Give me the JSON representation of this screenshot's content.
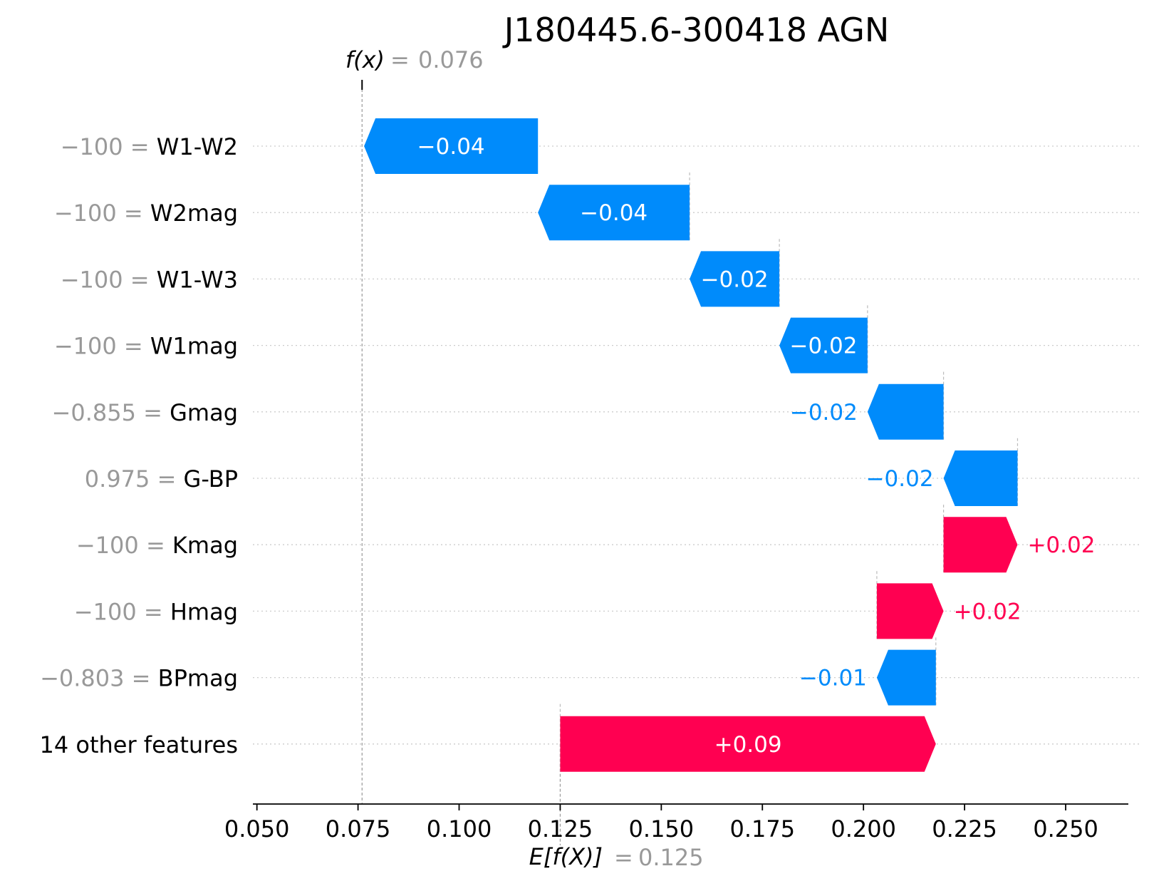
{
  "chart_data": {
    "type": "waterfall",
    "title": "J180445.6-300418 AGN",
    "fx": {
      "label": "f(x)",
      "value": 0.076,
      "value_text": "0.076"
    },
    "base": {
      "label": "E[f(X)]",
      "value": 0.125,
      "value_text": "0.125"
    },
    "x_ticks": [
      "0.050",
      "0.075",
      "0.100",
      "0.125",
      "0.150",
      "0.175",
      "0.200",
      "0.225",
      "0.250"
    ],
    "xlim": [
      0.049,
      0.2655
    ],
    "colors": {
      "positive": "#ff0051",
      "negative": "#008bfb"
    },
    "features": [
      {
        "value": "−100",
        "name": "W1-W2",
        "start": 0.1195,
        "end": 0.0765,
        "label": "−0.04"
      },
      {
        "value": "−100",
        "name": "W2mag",
        "start": 0.157,
        "end": 0.1195,
        "label": "−0.04"
      },
      {
        "value": "−100",
        "name": "W1-W3",
        "start": 0.1792,
        "end": 0.157,
        "label": "−0.02"
      },
      {
        "value": "−100",
        "name": "W1mag",
        "start": 0.201,
        "end": 0.1792,
        "label": "−0.02"
      },
      {
        "value": "−0.855",
        "name": "Gmag",
        "start": 0.2198,
        "end": 0.201,
        "label": "−0.02"
      },
      {
        "value": "0.975",
        "name": "G-BP",
        "start": 0.2381,
        "end": 0.2198,
        "label": "−0.02"
      },
      {
        "value": "−100",
        "name": "Kmag",
        "start": 0.2198,
        "end": 0.2381,
        "label": "+0.02"
      },
      {
        "value": "−100",
        "name": "Hmag",
        "start": 0.2033,
        "end": 0.2198,
        "label": "+0.02"
      },
      {
        "value": "−0.803",
        "name": "BPmag",
        "start": 0.2179,
        "end": 0.2033,
        "label": "−0.01"
      },
      {
        "value": "",
        "name": "14 other features",
        "start": 0.125,
        "end": 0.2179,
        "label": "+0.09"
      }
    ]
  }
}
